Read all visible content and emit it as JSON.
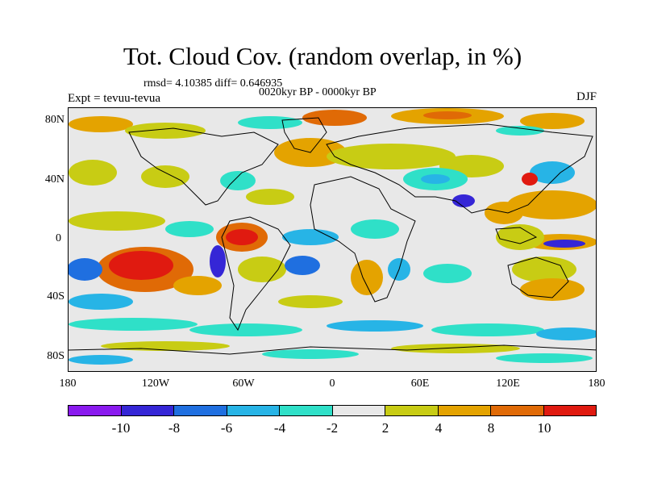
{
  "title": "Tot. Cloud Cov. (random overlap, in %)",
  "stats_text": "rmsd= 4.10385 diff= 0.646935",
  "period_text": "0020kyr BP - 0000kyr BP",
  "expt_text": "Expt = tevuu-tevua",
  "season_text": "DJF",
  "map": {
    "lat_labels": [
      "80N",
      "40N",
      "0",
      "40S",
      "80S"
    ],
    "lon_labels": [
      "180",
      "120W",
      "60W",
      "0",
      "60E",
      "120E",
      "180"
    ]
  },
  "colorbar": {
    "colors": [
      "#8a1aef",
      "#3526d6",
      "#1f6fe0",
      "#27b4e6",
      "#2fe0c8",
      "#e8e8e8",
      "#c8cc14",
      "#e4a300",
      "#e06a06",
      "#e01a10"
    ],
    "labels": [
      "-10",
      "-8",
      "-6",
      "-4",
      "-2",
      "2",
      "4",
      "8",
      "10"
    ]
  },
  "chart_data": {
    "type": "heatmap",
    "title": "Tot. Cloud Cov. (random overlap, in %)",
    "subtitle": "0020kyr BP - 0000kyr BP",
    "xlim": [
      -180,
      180
    ],
    "ylim": [
      -90,
      90
    ],
    "x_ticks": [
      "180",
      "120W",
      "60W",
      "0",
      "60E",
      "120E",
      "180"
    ],
    "y_ticks": [
      "80N",
      "40N",
      "0",
      "40S",
      "80S"
    ],
    "levels": [
      -10,
      -8,
      -6,
      -4,
      -2,
      2,
      4,
      8,
      10
    ],
    "rmsd": 4.10385,
    "diff": 0.646935,
    "season": "DJF",
    "experiment": "tevuu-tevua"
  }
}
